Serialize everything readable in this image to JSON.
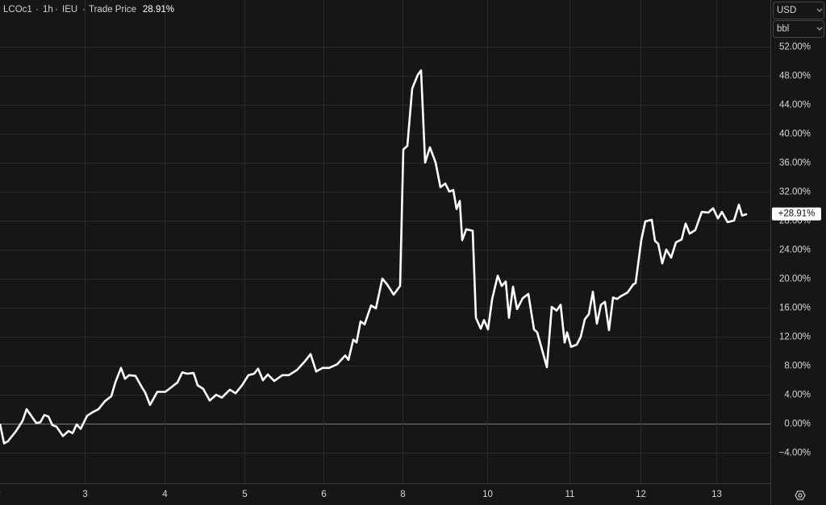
{
  "header": {
    "symbol": "LCOc1",
    "interval": "1h",
    "exchange": "IEU",
    "field": "Trade Price",
    "value": "28.91%"
  },
  "controls": {
    "currency": "USD",
    "unit": "bbl"
  },
  "chart_data": {
    "type": "line",
    "x": [
      0,
      5,
      10,
      20,
      28,
      33,
      38,
      45,
      50,
      55,
      60,
      65,
      70,
      78,
      85,
      90,
      95,
      100,
      108,
      115,
      122,
      130,
      138,
      143,
      150,
      155,
      160,
      168,
      175,
      180,
      186,
      195,
      205,
      212,
      220,
      226,
      232,
      240,
      245,
      252,
      260,
      268,
      275,
      285,
      292,
      300,
      308,
      315,
      320,
      326,
      332,
      340,
      350,
      358,
      368,
      378,
      385,
      392,
      400,
      408,
      418,
      428,
      432,
      438,
      442,
      447,
      452,
      460,
      466,
      474,
      480,
      488,
      496,
      500,
      505,
      511,
      518,
      522,
      527,
      533,
      540,
      546,
      552,
      557,
      562,
      566,
      570,
      573,
      578,
      586,
      590,
      596,
      600,
      605,
      610,
      617,
      622,
      627,
      631,
      636,
      641,
      648,
      655,
      662,
      666,
      678,
      684,
      690,
      695,
      700,
      703,
      708,
      715,
      720,
      725,
      730,
      735,
      740,
      745,
      750,
      755,
      760,
      765,
      770,
      778,
      785,
      788,
      795,
      800,
      808,
      812,
      816,
      821,
      826,
      832,
      838,
      845,
      850,
      855,
      862,
      870,
      878,
      884,
      890,
      895,
      902,
      910,
      916,
      920,
      926
    ],
    "series": [
      {
        "name": "LCOc1",
        "color": "#ffffff",
        "values": [
          0,
          -2.7,
          -2.4,
          -1,
          0.4,
          2,
          1.2,
          0.1,
          0.2,
          1.2,
          1,
          -0.2,
          -0.4,
          -1.7,
          -1,
          -1.3,
          -0.1,
          -0.7,
          1.1,
          1.6,
          2,
          3.1,
          3.8,
          5.7,
          7.7,
          6.2,
          6.7,
          6.6,
          5.2,
          4.3,
          2.6,
          4.4,
          4.4,
          5,
          5.7,
          7.1,
          6.9,
          7,
          5.3,
          4.8,
          3.2,
          4,
          3.6,
          4.7,
          4.2,
          5.3,
          6.7,
          6.9,
          7.6,
          6,
          6.8,
          5.9,
          6.7,
          6.7,
          7.4,
          8.6,
          9.6,
          7.2,
          7.7,
          7.7,
          8.2,
          9.4,
          8.8,
          11.6,
          11.2,
          14.1,
          13.7,
          16.3,
          15.9,
          20,
          19.2,
          17.8,
          19,
          37.8,
          38.3,
          46.2,
          48.1,
          48.7,
          36,
          38.1,
          36,
          32.6,
          33.1,
          32,
          32.2,
          29.6,
          30.7,
          25.3,
          26.8,
          26.6,
          14.6,
          13.1,
          14.3,
          13,
          17.1,
          20.4,
          19,
          19.6,
          14.6,
          18.9,
          15.8,
          17.3,
          17.9,
          13,
          12.6,
          7.8,
          16.1,
          15.6,
          16.4,
          11.2,
          12.6,
          10.6,
          10.9,
          12,
          14.4,
          15.1,
          18.2,
          13.8,
          16.4,
          16.8,
          12.9,
          17.4,
          17.2,
          17.6,
          18.1,
          19.2,
          19.4,
          25.3,
          27.9,
          28.1,
          25.2,
          24.8,
          22.1,
          24,
          22.9,
          25,
          25.4,
          27.6,
          26.2,
          26.7,
          29.2,
          29.1,
          29.7,
          28.3,
          29.2,
          27.8,
          28,
          30.2,
          28.7,
          28.91
        ]
      }
    ],
    "last_value": {
      "value": 28.91,
      "label": "+28.91%"
    },
    "xlim": [
      0,
      955
    ],
    "xticks": [
      {
        "value": -10,
        "label": "Mar"
      },
      {
        "value": 105,
        "label": "3"
      },
      {
        "value": 204,
        "label": "4"
      },
      {
        "value": 303,
        "label": "5"
      },
      {
        "value": 401,
        "label": "6"
      },
      {
        "value": 499,
        "label": "8"
      },
      {
        "value": 604,
        "label": "10"
      },
      {
        "value": 706,
        "label": "11"
      },
      {
        "value": 794,
        "label": "12"
      },
      {
        "value": 888,
        "label": "13"
      }
    ],
    "ylim": [
      -8.2,
      58.4
    ],
    "yticks": [
      {
        "value": -4,
        "label": "−4.00%"
      },
      {
        "value": 0,
        "label": "0.00%"
      },
      {
        "value": 4,
        "label": "4.00%"
      },
      {
        "value": 8,
        "label": "8.00%"
      },
      {
        "value": 12,
        "label": "12.00%"
      },
      {
        "value": 16,
        "label": "16.00%"
      },
      {
        "value": 20,
        "label": "20.00%"
      },
      {
        "value": 24,
        "label": "24.00%"
      },
      {
        "value": 28,
        "label": "28.00%"
      },
      {
        "value": 32,
        "label": "32.00%"
      },
      {
        "value": 36,
        "label": "36.00%"
      },
      {
        "value": 40,
        "label": "40.00%"
      },
      {
        "value": 44,
        "label": "44.00%"
      },
      {
        "value": 48,
        "label": "48.00%"
      },
      {
        "value": 52,
        "label": "52.00%"
      }
    ],
    "grid": true
  }
}
